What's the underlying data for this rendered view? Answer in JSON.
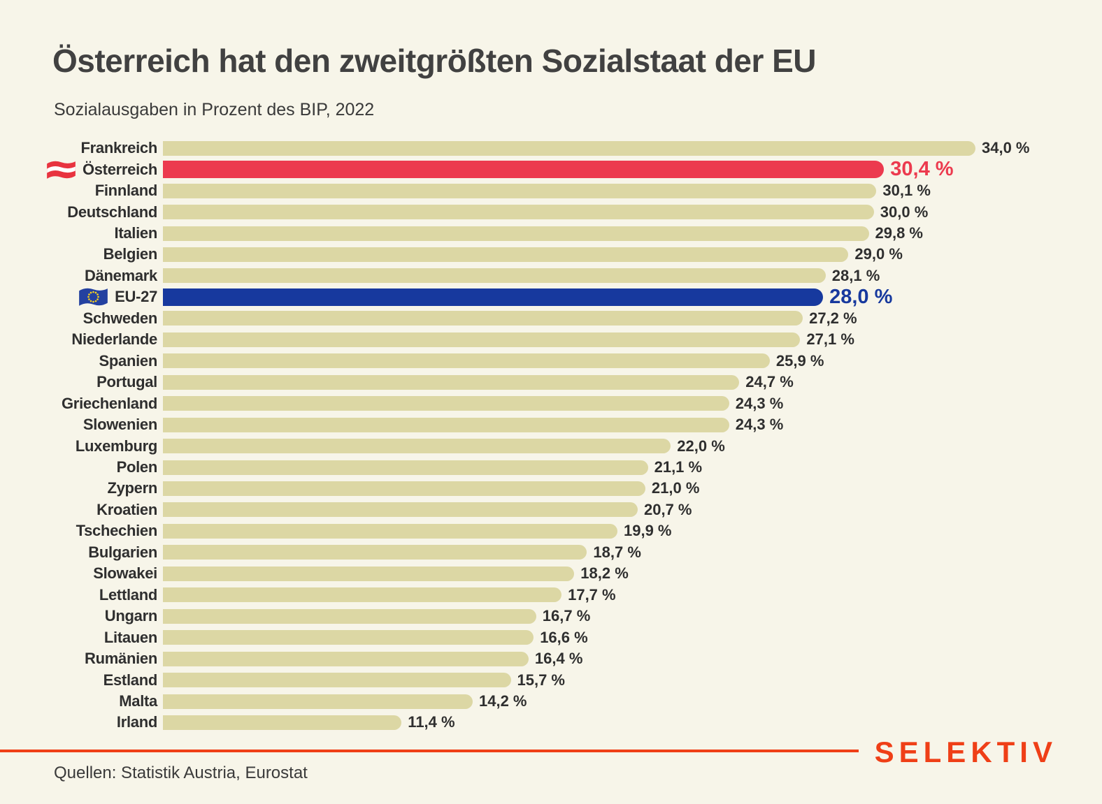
{
  "header": {
    "title": "Österreich hat den zweitgrößten Sozialstaat der EU",
    "subtitle": "Sozialausgaben in Prozent des BIP, 2022"
  },
  "footer": {
    "source": "Quellen: Statistik Austria, Eurostat",
    "brand": "SELEKTIV"
  },
  "colors": {
    "background": "#f7f5e9",
    "bar_default": "#dcd7a4",
    "bar_highlight_red": "#ec3a4e",
    "bar_highlight_blue": "#17399e",
    "accent_orange": "#ef3f17",
    "text_dark": "#2f2f2f"
  },
  "chart_data": {
    "type": "bar",
    "orientation": "horizontal",
    "title": "Österreich hat den zweitgrößten Sozialstaat der EU",
    "subtitle": "Sozialausgaben in Prozent des BIP, 2022",
    "value_unit": "Prozent des BIP",
    "year": "2022",
    "grid": false,
    "axis_visible": false,
    "bar_scale_range": [
      2,
      34
    ],
    "categories": [
      "Frankreich",
      "Österreich",
      "Finnland",
      "Deutschland",
      "Italien",
      "Belgien",
      "Dänemark",
      "EU-27",
      "Schweden",
      "Niederlande",
      "Spanien",
      "Portugal",
      "Griechenland",
      "Slowenien",
      "Luxemburg",
      "Polen",
      "Zypern",
      "Kroatien",
      "Tschechien",
      "Bulgarien",
      "Slowakei",
      "Lettland",
      "Ungarn",
      "Litauen",
      "Rumänien",
      "Estland",
      "Malta",
      "Irland"
    ],
    "values": [
      34.0,
      30.4,
      30.1,
      30.0,
      29.8,
      29.0,
      28.1,
      28.0,
      27.2,
      27.1,
      25.9,
      24.7,
      24.3,
      24.3,
      22.0,
      21.1,
      21.0,
      20.7,
      19.9,
      18.7,
      18.2,
      17.7,
      16.7,
      16.6,
      16.4,
      15.7,
      14.2,
      11.4
    ],
    "rows": [
      {
        "label": "Frankreich",
        "value": 34.0,
        "display": "34,0 %"
      },
      {
        "label": "Österreich",
        "value": 30.4,
        "display": "30,4 %",
        "flag": "austria-flag-icon",
        "highlight": "red"
      },
      {
        "label": "Finnland",
        "value": 30.1,
        "display": "30,1 %"
      },
      {
        "label": "Deutschland",
        "value": 30.0,
        "display": "30,0 %"
      },
      {
        "label": "Italien",
        "value": 29.8,
        "display": "29,8 %"
      },
      {
        "label": "Belgien",
        "value": 29.0,
        "display": "29,0 %"
      },
      {
        "label": "Dänemark",
        "value": 28.1,
        "display": "28,1 %"
      },
      {
        "label": "EU-27",
        "value": 28.0,
        "display": "28,0 %",
        "flag": "eu-flag-icon",
        "highlight": "blue"
      },
      {
        "label": "Schweden",
        "value": 27.2,
        "display": "27,2 %"
      },
      {
        "label": "Niederlande",
        "value": 27.1,
        "display": "27,1 %"
      },
      {
        "label": "Spanien",
        "value": 25.9,
        "display": "25,9 %"
      },
      {
        "label": "Portugal",
        "value": 24.7,
        "display": "24,7 %"
      },
      {
        "label": "Griechenland",
        "value": 24.3,
        "display": "24,3 %"
      },
      {
        "label": "Slowenien",
        "value": 24.3,
        "display": "24,3 %"
      },
      {
        "label": "Luxemburg",
        "value": 22.0,
        "display": "22,0 %"
      },
      {
        "label": "Polen",
        "value": 21.1,
        "display": "21,1 %"
      },
      {
        "label": "Zypern",
        "value": 21.0,
        "display": "21,0 %"
      },
      {
        "label": "Kroatien",
        "value": 20.7,
        "display": "20,7 %"
      },
      {
        "label": "Tschechien",
        "value": 19.9,
        "display": "19,9 %"
      },
      {
        "label": "Bulgarien",
        "value": 18.7,
        "display": "18,7 %"
      },
      {
        "label": "Slowakei",
        "value": 18.2,
        "display": "18,2 %"
      },
      {
        "label": "Lettland",
        "value": 17.7,
        "display": "17,7 %"
      },
      {
        "label": "Ungarn",
        "value": 16.7,
        "display": "16,7 %"
      },
      {
        "label": "Litauen",
        "value": 16.6,
        "display": "16,6 %"
      },
      {
        "label": "Rumänien",
        "value": 16.4,
        "display": "16,4 %"
      },
      {
        "label": "Estland",
        "value": 15.7,
        "display": "15,7 %"
      },
      {
        "label": "Malta",
        "value": 14.2,
        "display": "14,2 %"
      },
      {
        "label": "Irland",
        "value": 11.4,
        "display": "11,4 %"
      }
    ]
  }
}
